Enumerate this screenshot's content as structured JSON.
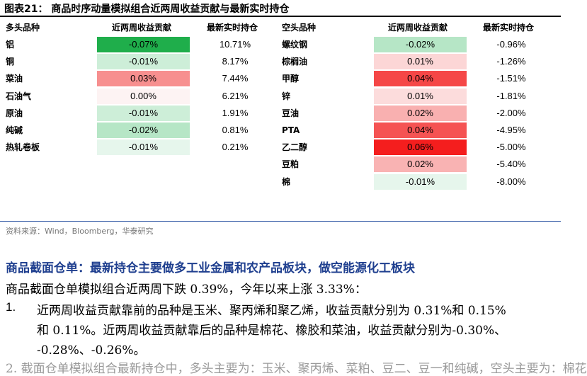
{
  "figure": {
    "title": "图表21：  商品时序动量模拟组合近两周收益贡献与最新实时持仓"
  },
  "table": {
    "long_headers": [
      "多头品种",
      "近两周收益贡献",
      "最新实时持仓"
    ],
    "short_headers": [
      "空头品种",
      "近两周收益贡献",
      "最新实时持仓"
    ],
    "long_rows": [
      {
        "name": "铝",
        "contribution": "-0.07%",
        "position": "10.71%",
        "color": "#1fae4b"
      },
      {
        "name": "铜",
        "contribution": "-0.01%",
        "position": "8.17%",
        "color": "#cdeed8"
      },
      {
        "name": "菜油",
        "contribution": "0.03%",
        "position": "7.44%",
        "color": "#f78f8f"
      },
      {
        "name": "石油气",
        "contribution": "0.00%",
        "position": "6.21%",
        "color": "#fdf3f3"
      },
      {
        "name": "原油",
        "contribution": "-0.01%",
        "position": "1.91%",
        "color": "#cdeed8"
      },
      {
        "name": "纯碱",
        "contribution": "-0.02%",
        "position": "0.81%",
        "color": "#b6e6c6"
      },
      {
        "name": "热轧卷板",
        "contribution": "-0.01%",
        "position": "0.21%",
        "color": "#e6f6ec"
      }
    ],
    "short_rows": [
      {
        "name": "螺纹钢",
        "contribution": "-0.02%",
        "position": "-0.96%",
        "color": "#b6e6c6"
      },
      {
        "name": "棕榈油",
        "contribution": "0.01%",
        "position": "-1.26%",
        "color": "#fcd6d6"
      },
      {
        "name": "甲醇",
        "contribution": "0.04%",
        "position": "-1.51%",
        "color": "#f54747"
      },
      {
        "name": "锌",
        "contribution": "0.01%",
        "position": "-1.81%",
        "color": "#fcdcdc"
      },
      {
        "name": "豆油",
        "contribution": "0.02%",
        "position": "-2.00%",
        "color": "#f9b0b0"
      },
      {
        "name": "PTA",
        "contribution": "0.04%",
        "position": "-4.95%",
        "color": "#f55353"
      },
      {
        "name": "乙二醇",
        "contribution": "0.06%",
        "position": "-5.00%",
        "color": "#f41e1e"
      },
      {
        "name": "豆粕",
        "contribution": "0.02%",
        "position": "-5.40%",
        "color": "#f9b3b3"
      },
      {
        "name": "棉",
        "contribution": "-0.01%",
        "position": "-8.00%",
        "color": "#e6f6ec"
      }
    ]
  },
  "source": "资料来源：Wind，Bloomberg，华泰研究",
  "section_title": "商品截面仓单：最新持仓主要做多工业金属和农产品板块，做空能源化工板块",
  "paragraph": "商品截面仓单模拟组合近两周下跌 0.39%，今年以来上涨 3.33%：",
  "list": {
    "number": "1.",
    "lines": [
      "近两周收益贡献靠前的品种是玉米、聚丙烯和聚乙烯，收益贡献分别为 0.31%和 0.15%",
      "和 0.11%。近两周收益贡献靠后的品种是棉花、橡胶和菜油，收益贡献分别为-0.30%、",
      "-0.28%、-0.26%。"
    ]
  },
  "cut_line": "2.   截面仓单模拟组合最新持仓中，多头主要为：玉米、聚丙烯、菜粕、豆二、豆一和纯碱，空头主要为：棉花"
}
